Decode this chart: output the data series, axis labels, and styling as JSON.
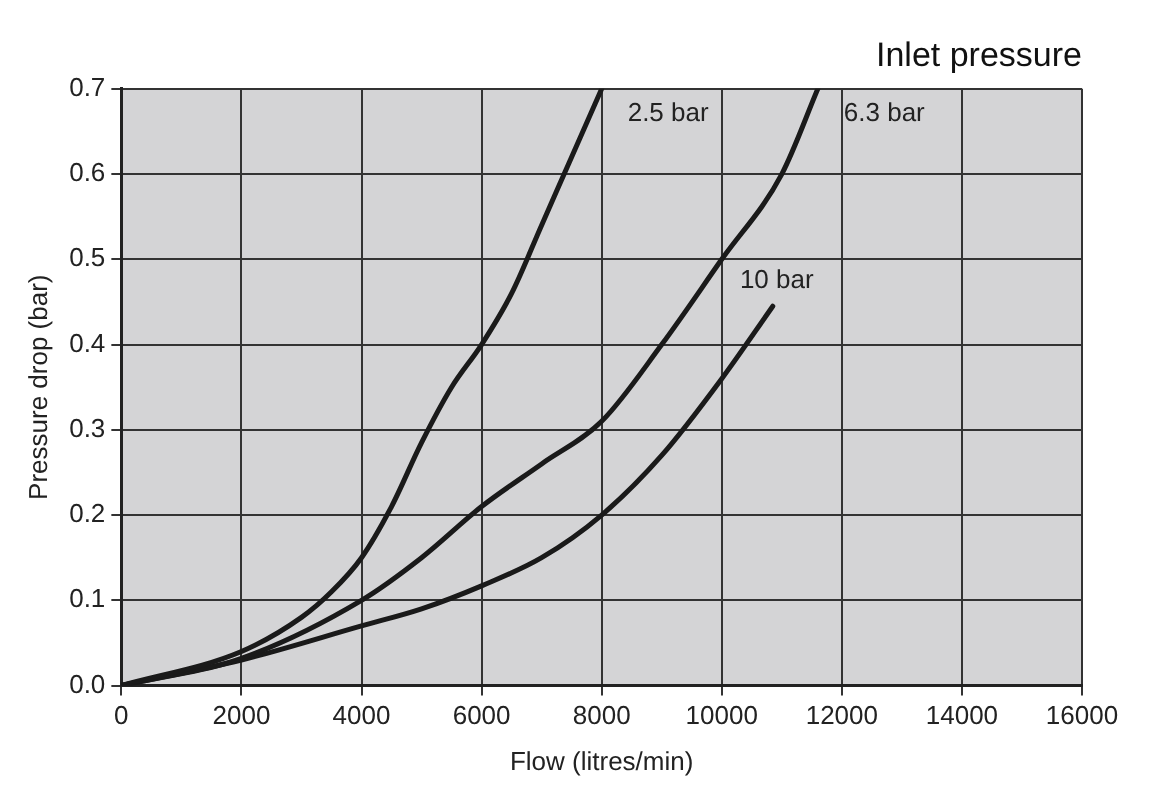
{
  "chart_data": {
    "type": "line",
    "title": "Inlet pressure",
    "xlabel": "Flow (litres/min)",
    "ylabel": "Pressure drop (bar)",
    "xlim": [
      0,
      16000
    ],
    "xticks": [
      0,
      2000,
      4000,
      6000,
      8000,
      10000,
      12000,
      14000,
      16000
    ],
    "ylim": [
      0,
      0.7
    ],
    "yticks": [
      {
        "value": 0,
        "label": "0.0"
      },
      0.1,
      0.2,
      0.3,
      0.4,
      0.5,
      0.6,
      0.7
    ],
    "grid": true,
    "legend": false,
    "marker": "none",
    "line_style": "solid",
    "series": [
      {
        "name": "2.5 bar",
        "color": "#1a1a1a",
        "x": [
          0,
          2000,
          3000,
          3500,
          4000,
          4500,
          5000,
          5500,
          6000,
          6500,
          7000,
          7500,
          8000
        ],
        "values": [
          0,
          0.04,
          0.08,
          0.11,
          0.15,
          0.21,
          0.285,
          0.35,
          0.4,
          0.46,
          0.54,
          0.62,
          0.7
        ]
      },
      {
        "name": "6.3 bar",
        "color": "#1a1a1a",
        "x": [
          0,
          2000,
          4000,
          5000,
          6000,
          7000,
          8000,
          9000,
          10000,
          11000,
          11600
        ],
        "values": [
          0,
          0.032,
          0.1,
          0.15,
          0.21,
          0.26,
          0.31,
          0.4,
          0.5,
          0.6,
          0.7
        ]
      },
      {
        "name": "10 bar",
        "color": "#1a1a1a",
        "x": [
          0,
          2000,
          4000,
          5000,
          6000,
          7000,
          8000,
          9000,
          10000,
          10850
        ],
        "values": [
          0,
          0.03,
          0.07,
          0.09,
          0.117,
          0.15,
          0.2,
          0.27,
          0.36,
          0.445
        ]
      }
    ]
  }
}
